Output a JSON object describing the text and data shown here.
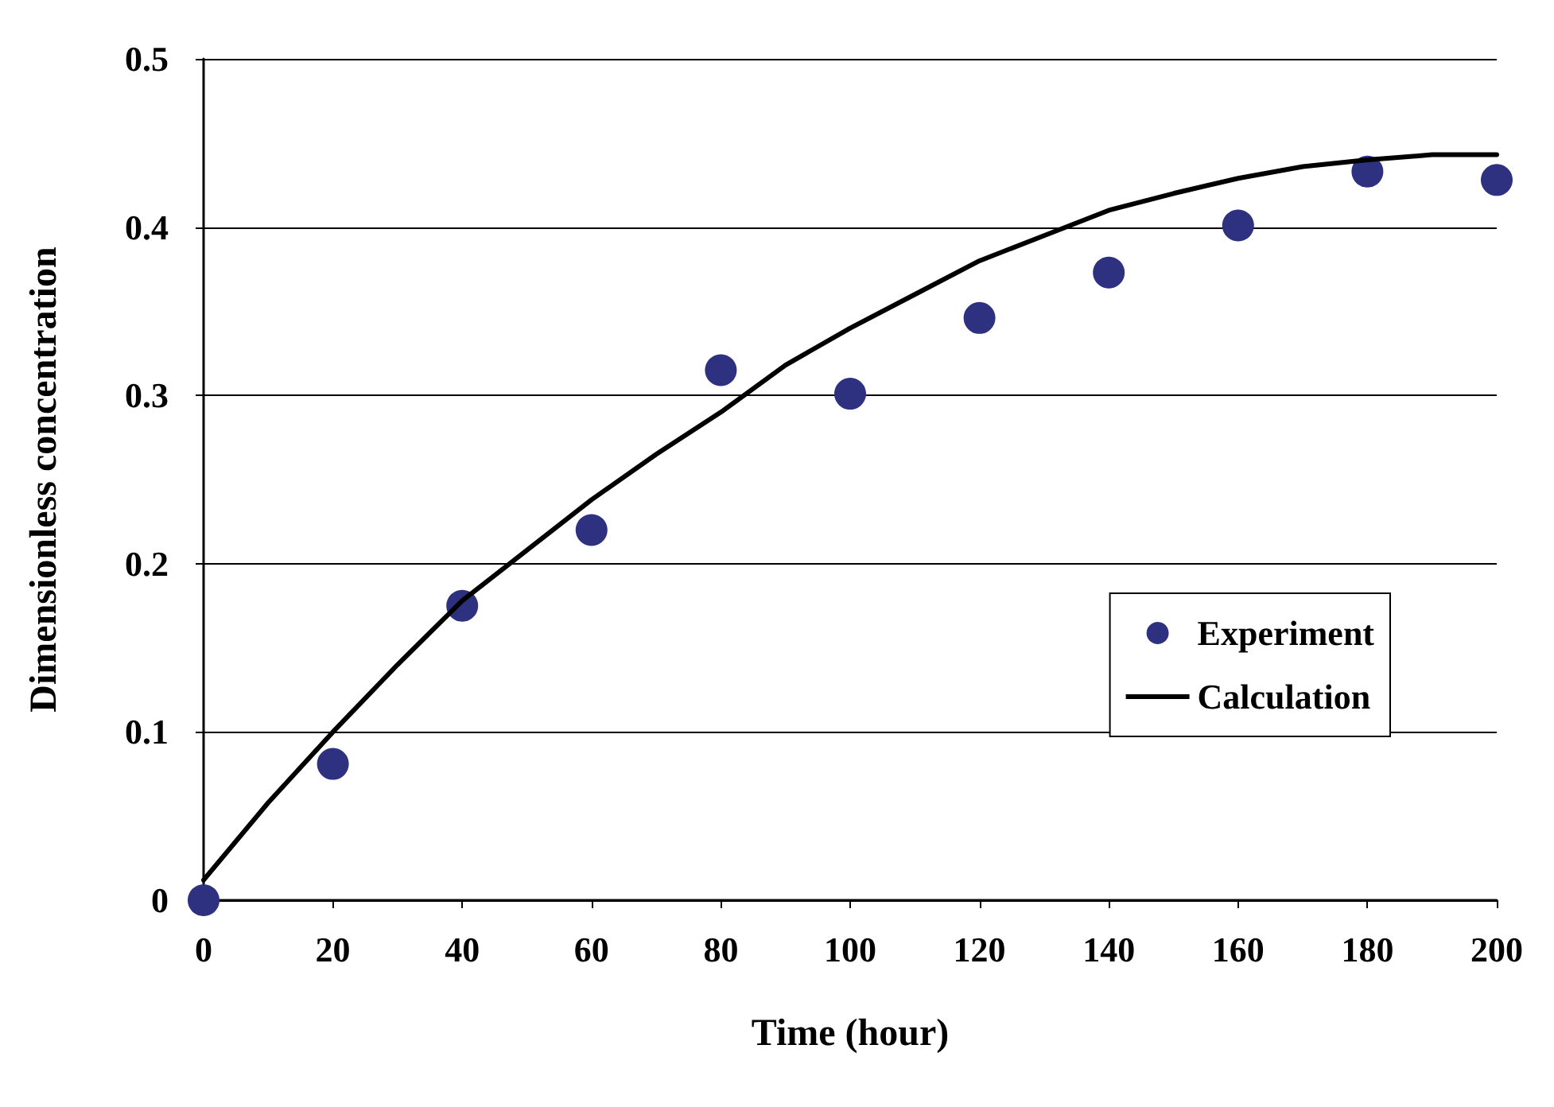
{
  "chart_data": {
    "type": "scatter",
    "xlabel": "Time (hour)",
    "ylabel": "Dimensionless concentration",
    "xlim": [
      0,
      200
    ],
    "xticks": [
      0,
      20,
      40,
      60,
      80,
      100,
      120,
      140,
      160,
      180,
      200
    ],
    "ylim": [
      0,
      0.5
    ],
    "yticks": [
      0,
      0.1,
      0.2,
      0.3,
      0.4,
      0.5
    ],
    "grid": "y",
    "legend": "right",
    "series": [
      {
        "name": "Experiment",
        "color": "#2e3080",
        "marker": "circle",
        "x": [
          0,
          20,
          40,
          60,
          80,
          100,
          120,
          140,
          160,
          180,
          200
        ],
        "values": [
          0,
          0.081,
          0.175,
          0.22,
          0.315,
          0.301,
          0.346,
          0.373,
          0.401,
          0.433,
          0.428
        ]
      },
      {
        "name": "Calculation",
        "type": "line",
        "color": "#000000",
        "marker": "none",
        "line_style": "solid",
        "x": [
          0,
          10,
          20,
          30,
          40,
          50,
          60,
          70,
          80,
          90,
          100,
          110,
          120,
          130,
          140,
          150,
          160,
          170,
          180,
          190,
          200
        ],
        "values": [
          0.012,
          0.058,
          0.1,
          0.14,
          0.178,
          0.208,
          0.238,
          0.265,
          0.29,
          0.318,
          0.34,
          0.36,
          0.38,
          0.395,
          0.41,
          0.42,
          0.429,
          0.436,
          0.44,
          0.443,
          0.443
        ]
      }
    ]
  }
}
